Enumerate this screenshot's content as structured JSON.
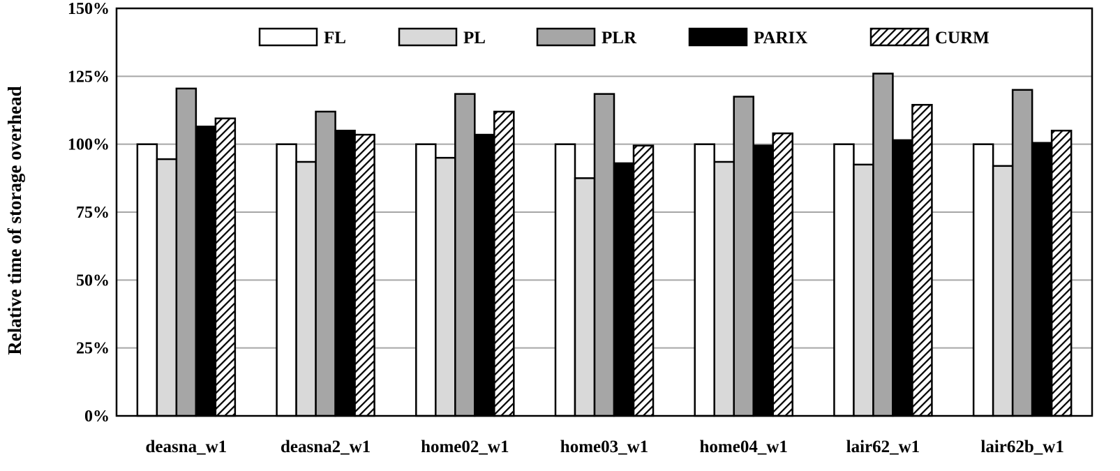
{
  "chart_data": {
    "type": "bar",
    "title": "",
    "xlabel": "",
    "ylabel": "Relative time of storage overhead",
    "ylim": [
      0,
      150
    ],
    "yticks": [
      "0%",
      "25%",
      "50%",
      "75%",
      "100%",
      "125%",
      "150%"
    ],
    "grid": true,
    "legend_position": "top-center",
    "categories": [
      "deasna_w1",
      "deasna2_w1",
      "home02_w1",
      "home03_w1",
      "home04_w1",
      "lair62_w1",
      "lair62b_w1"
    ],
    "series": [
      {
        "name": "FL",
        "fill": "#ffffff",
        "pattern": "solid",
        "values": [
          100,
          100,
          100,
          100,
          100,
          100,
          100
        ]
      },
      {
        "name": "PL",
        "fill": "#d9d9d9",
        "pattern": "solid",
        "values": [
          94.5,
          93.5,
          95,
          87.5,
          93.5,
          92.5,
          92
        ]
      },
      {
        "name": "PLR",
        "fill": "#a6a6a6",
        "pattern": "solid",
        "values": [
          120.5,
          112,
          118.5,
          118.5,
          117.5,
          126,
          120
        ]
      },
      {
        "name": "PARIX",
        "fill": "#000000",
        "pattern": "solid",
        "values": [
          106.5,
          105,
          103.5,
          93,
          99.5,
          101.5,
          100.5
        ]
      },
      {
        "name": "CURM",
        "fill": "#ffffff",
        "pattern": "hatched",
        "values": [
          109.5,
          103.5,
          112,
          99.5,
          104,
          114.5,
          105
        ]
      }
    ]
  }
}
